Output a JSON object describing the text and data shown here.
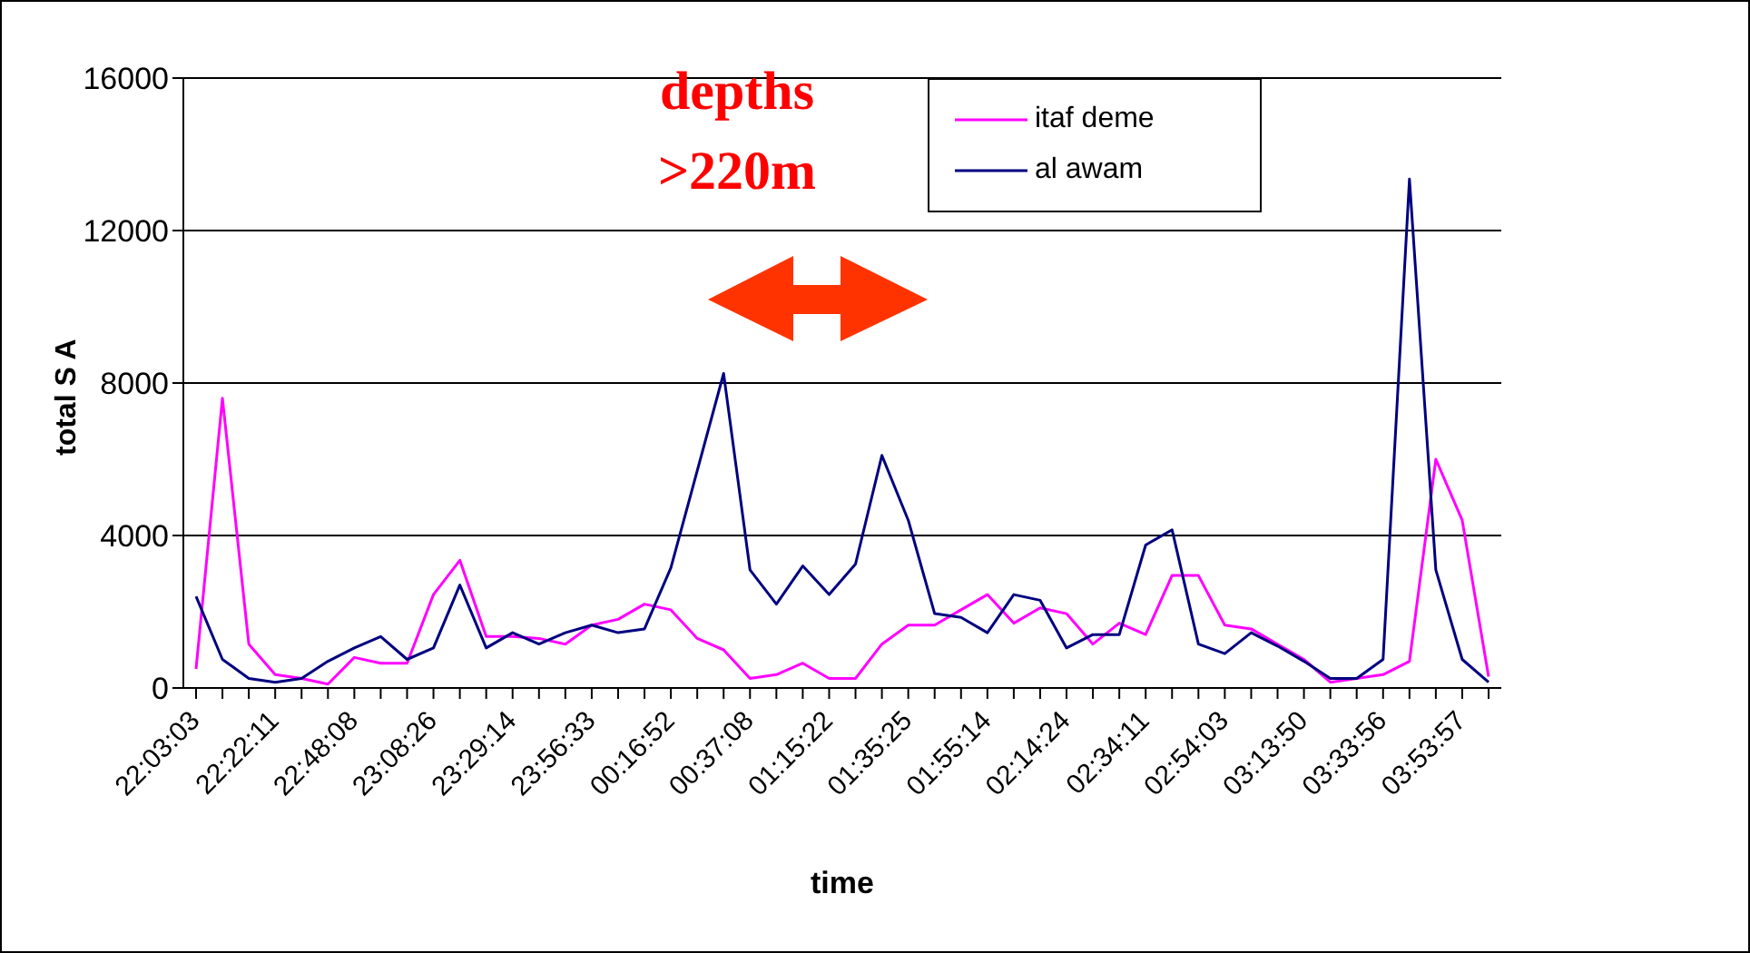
{
  "chart_data": {
    "type": "line",
    "xlabel": "time",
    "ylabel": "total S A",
    "annotations": [
      "depths >220m"
    ],
    "categories": [
      "22:03:03",
      null,
      null,
      "22:22:11",
      null,
      null,
      "22:48:08",
      null,
      null,
      "23:08:26",
      null,
      null,
      "23:29:14",
      null,
      null,
      "23:56:33",
      null,
      null,
      "00:16:52",
      null,
      null,
      "00:37:08",
      null,
      null,
      "01:15:22",
      null,
      null,
      "01:35:25",
      null,
      null,
      "01:55:14",
      null,
      null,
      "02:14:24",
      null,
      null,
      "02:34:11",
      null,
      null,
      "02:54:03",
      null,
      null,
      "03:13:50",
      null,
      null,
      "03:33:56",
      null,
      null,
      "03:53:57",
      null
    ],
    "series": [
      {
        "name": "itaf deme",
        "color": "#ff00ff",
        "values": [
          500,
          7600,
          1150,
          350,
          250,
          100,
          800,
          650,
          650,
          2450,
          3350,
          1350,
          1350,
          1300,
          1150,
          1650,
          1800,
          2200,
          2050,
          1300,
          1000,
          250,
          350,
          650,
          250,
          250,
          1150,
          1650,
          1650,
          2050,
          2450,
          1700,
          2100,
          1950,
          1150,
          1700,
          1400,
          2950,
          2950,
          1650,
          1550,
          1150,
          750,
          150,
          250,
          350,
          700,
          6000,
          4400,
          300
        ]
      },
      {
        "name": "al awam",
        "color": "#000080",
        "values": [
          2400,
          750,
          250,
          150,
          250,
          700,
          1050,
          1350,
          750,
          1050,
          2700,
          1050,
          1450,
          1150,
          1450,
          1650,
          1450,
          1550,
          3150,
          5700,
          8250,
          3100,
          2200,
          3200,
          2450,
          3250,
          6100,
          4400,
          1950,
          1850,
          1450,
          2450,
          2300,
          1050,
          1400,
          1400,
          3750,
          4150,
          1150,
          900,
          1450,
          1100,
          700,
          250,
          250,
          750,
          13350,
          3100,
          750,
          150
        ]
      }
    ],
    "ylim": [
      0,
      16000
    ],
    "yticks": [
      0,
      4000,
      8000,
      12000,
      16000
    ],
    "grid": "y",
    "legend": "top right",
    "marker": "none",
    "line_style": "solid"
  }
}
